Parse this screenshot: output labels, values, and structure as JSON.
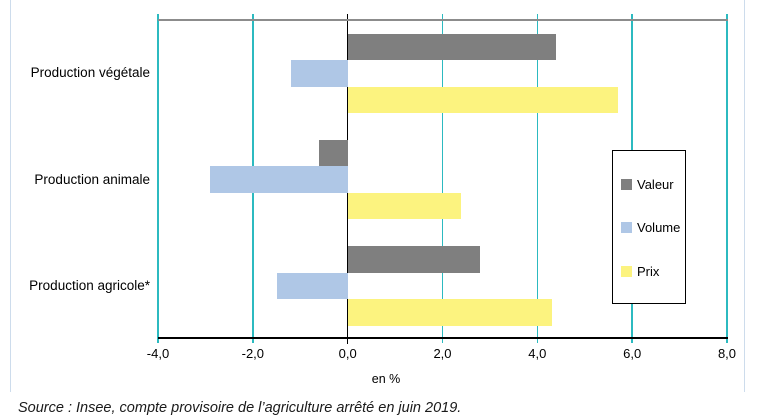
{
  "chart_data": {
    "type": "bar",
    "orientation": "horizontal",
    "title": "",
    "categories": [
      "Production végétale",
      "Production animale",
      "Production agricole*"
    ],
    "series": [
      {
        "name": "Valeur",
        "color": "#7f7f7f",
        "values": [
          4.4,
          -0.6,
          2.8
        ]
      },
      {
        "name": "Volume",
        "color": "#afc7e6",
        "values": [
          -1.2,
          -2.9,
          -1.5
        ]
      },
      {
        "name": "Prix",
        "color": "#fcf37f",
        "values": [
          5.7,
          2.4,
          4.3
        ]
      }
    ],
    "xlabel": "en %",
    "xlim": [
      -4,
      8
    ],
    "xtick_values": [
      -4,
      -2,
      0,
      2,
      4,
      6,
      8
    ],
    "xtick_labels": [
      "-4,0",
      "-2,0",
      "0,0",
      "2,0",
      "4,0",
      "6,0",
      "8,0"
    ],
    "grid": true,
    "gridline_color": "#2cbac0",
    "zero_line_color": "#000000",
    "legend_position": "inside-right",
    "legend_entries": [
      "Valeur",
      "Volume",
      "Prix"
    ]
  },
  "source_note": "Source : Insee, compte provisoire de l’agriculture arrêté en juin 2019.",
  "colors": {
    "frame_border": "#cddcec",
    "plot_top_border": "#8c8c8c",
    "axis_line": "#000000"
  }
}
